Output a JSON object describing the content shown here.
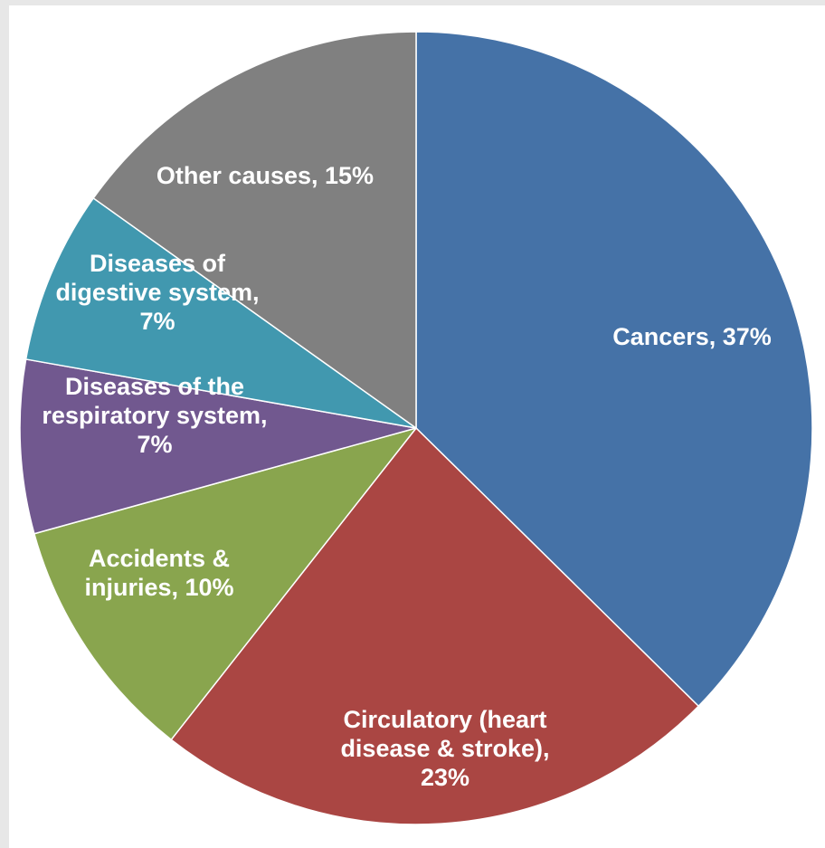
{
  "chart_data": {
    "type": "pie",
    "title": "",
    "start_angle_deg": 0,
    "direction": "clockwise",
    "slices": [
      {
        "name": "Cancers",
        "value": 37,
        "label_lines": [
          "Cancers, 37%"
        ],
        "color": "#4572a7"
      },
      {
        "name": "Circulatory (heart disease & stroke)",
        "value": 23,
        "label_lines": [
          "Circulatory (heart",
          "disease & stroke),",
          "23%"
        ],
        "color": "#aa4643"
      },
      {
        "name": "Accidents & injuries",
        "value": 10,
        "label_lines": [
          "Accidents &",
          "injuries, 10%"
        ],
        "color": "#89a54e"
      },
      {
        "name": "Diseases of the respiratory system",
        "value": 7,
        "label_lines": [
          "Diseases of the",
          "respiratory system,",
          "7%"
        ],
        "color": "#71588f"
      },
      {
        "name": "Diseases of digestive system",
        "value": 7,
        "label_lines": [
          "Diseases of",
          "digestive system,",
          "7%"
        ],
        "color": "#4198af"
      },
      {
        "name": "Other causes",
        "value": 15,
        "label_lines": [
          "Other causes, 15%"
        ],
        "color": "#808080"
      }
    ],
    "border_color": "#ffffff"
  }
}
